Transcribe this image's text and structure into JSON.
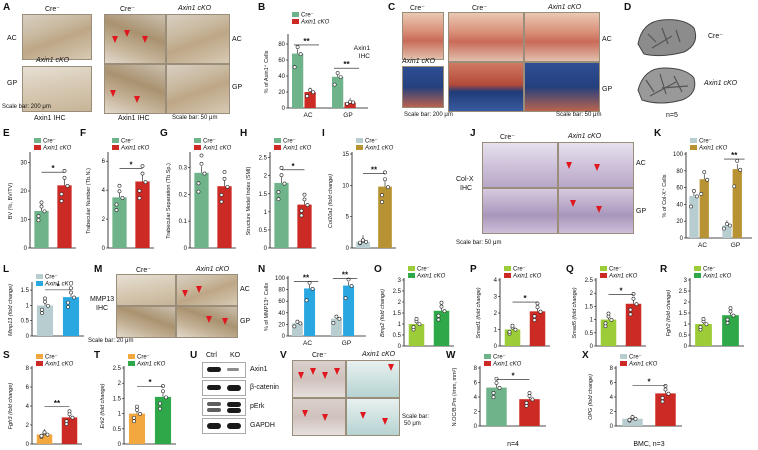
{
  "panel_letters": [
    "A",
    "B",
    "C",
    "D",
    "E",
    "F",
    "G",
    "H",
    "I",
    "J",
    "K",
    "L",
    "M",
    "N",
    "O",
    "P",
    "Q",
    "R",
    "S",
    "T",
    "U",
    "V",
    "W",
    "X"
  ],
  "colors": {
    "ctrl_green": "#6fb38a",
    "cko_red": "#cc2a24",
    "ctrl_gray": "#b7cdd0",
    "cko_gold": "#b89333",
    "cko_blue": "#29a7e1",
    "ctrl_lime": "#9ccc37",
    "cko_dgreen": "#2fa84a",
    "ctrl_orange": "#f2a73f",
    "arrow_red": "#e0171f"
  },
  "common": {
    "cre": "Cre⁻",
    "cko": "Axin1 cKO",
    "scale200": "Scale bar: 200 μm",
    "scale50": "Scale bar: 50 μm",
    "scale20": "Scale bar: 20 μm",
    "ac": "AC",
    "gp": "GP",
    "n5": "n=5",
    "n4": "n=4",
    "bmc": "BMC, n=3"
  },
  "panelA": {
    "cre": "Cre⁻",
    "cko_inset": "Axin1 cKO",
    "cko": "Axin1 cKO",
    "ihc": "Axin1 IHC",
    "scale_left": "Scale bar: 200 μm",
    "scale_right": "Scale bar: 50 μm"
  },
  "panelU": {
    "ctrl": "Ctrl",
    "ko": "KO",
    "rows": [
      "Axin1",
      "β-catenin",
      "pErk",
      "GAPDH"
    ]
  },
  "panelJ": {
    "lbl1": "Col-X",
    "lbl2": "IHC"
  },
  "panelM": {
    "lbl1": "MMP13",
    "lbl2": "IHC"
  },
  "chart_data": [
    {
      "panel": "B",
      "type": "bar",
      "ylabel": "% of Axin1⁺ Cells",
      "yticks": [
        0,
        20,
        40,
        60,
        80
      ],
      "ylim": [
        0,
        90
      ],
      "categories": [
        "AC",
        "GP"
      ],
      "series": [
        {
          "name": "Cre⁻",
          "color": "#6fb38a",
          "values": [
            68,
            39
          ]
        },
        {
          "name": "Axin1 cKO",
          "color": "#cc2a24",
          "values": [
            20,
            7
          ]
        }
      ],
      "annotations": [
        "**",
        "**"
      ],
      "side_label": "Axin1 IHC"
    },
    {
      "panel": "E",
      "type": "bar",
      "ylabel": "BV (%, BV/TV)",
      "yticks": [
        0,
        10,
        20,
        30
      ],
      "ylim": [
        0,
        33
      ],
      "categories": [
        "Cre⁻",
        "Axin1 cKO"
      ],
      "values": [
        13,
        22
      ],
      "colors": [
        "#6fb38a",
        "#cc2a24"
      ],
      "annotations": [
        "*"
      ]
    },
    {
      "panel": "F",
      "type": "bar",
      "ylabel": "Trabecular Number (Tb.N.)",
      "yticks": [
        0,
        2,
        4,
        6
      ],
      "ylim": [
        0,
        6.5
      ],
      "categories": [
        "Cre⁻",
        "Axin1 cKO"
      ],
      "values": [
        3.5,
        4.6
      ],
      "colors": [
        "#6fb38a",
        "#cc2a24"
      ],
      "annotations": [
        "*"
      ]
    },
    {
      "panel": "G",
      "type": "bar",
      "ylabel": "Trabecular Separation (Tb.Sp.)",
      "yticks": [
        0,
        0.1,
        0.2,
        0.3
      ],
      "ylim": [
        0,
        0.35
      ],
      "categories": [
        "Cre⁻",
        "Axin1 cKO"
      ],
      "values": [
        0.28,
        0.23
      ],
      "colors": [
        "#6fb38a",
        "#cc2a24"
      ],
      "annotations": [
        ""
      ]
    },
    {
      "panel": "H",
      "type": "bar",
      "ylabel": "Structure Model Index (SMI)",
      "yticks": [
        0,
        0.5,
        1,
        1.5,
        2,
        2.5
      ],
      "ylim": [
        0,
        2.6
      ],
      "categories": [
        "Cre⁻",
        "Axin1 cKO"
      ],
      "values": [
        1.8,
        1.2
      ],
      "colors": [
        "#6fb38a",
        "#cc2a24"
      ],
      "annotations": [
        "*"
      ]
    },
    {
      "panel": "I",
      "type": "bar",
      "ylabel": "Col10a1 (fold change)",
      "yticks": [
        0,
        5,
        10,
        15
      ],
      "ylim": [
        0,
        15
      ],
      "categories": [
        "Cre⁻",
        "Axin1 cKO"
      ],
      "values": [
        1,
        9.8
      ],
      "colors": [
        "#b7cdd0",
        "#b89333"
      ],
      "annotations": [
        "**"
      ]
    },
    {
      "panel": "K",
      "type": "bar",
      "ylabel": "% of Col-X⁺ Cells",
      "yticks": [
        0,
        20,
        40,
        60,
        80,
        100
      ],
      "ylim": [
        0,
        100
      ],
      "categories": [
        "AC",
        "GP"
      ],
      "series": [
        {
          "name": "Cre⁻",
          "color": "#b7cdd0",
          "values": [
            50,
            15
          ]
        },
        {
          "name": "Axin1 cKO",
          "color": "#b89333",
          "values": [
            70,
            82
          ]
        }
      ],
      "annotations": [
        "",
        "**"
      ]
    },
    {
      "panel": "L",
      "type": "bar",
      "ylabel": "Mmp13 (fold change)",
      "yticks": [
        0,
        0.5,
        1,
        1.5
      ],
      "ylim": [
        0,
        1.7
      ],
      "categories": [
        "Cre⁻",
        "Axin1 cKO"
      ],
      "values": [
        1.0,
        1.27
      ],
      "colors": [
        "#b7cdd0",
        "#29a7e1"
      ],
      "annotations": [
        "*"
      ]
    },
    {
      "panel": "N",
      "type": "bar",
      "ylabel": "% of MMP13⁺ Cells",
      "yticks": [
        0,
        20,
        40,
        60,
        80,
        100
      ],
      "ylim": [
        0,
        100
      ],
      "categories": [
        "AC",
        "GP"
      ],
      "series": [
        {
          "name": "Cre⁻",
          "color": "#b7cdd0",
          "values": [
            22,
            30
          ]
        },
        {
          "name": "Axin1 cKO",
          "color": "#29a7e1",
          "values": [
            82,
            87
          ]
        }
      ],
      "annotations": [
        "**",
        "**"
      ]
    },
    {
      "panel": "O",
      "type": "bar",
      "ylabel": "Bmp2 (fold change)",
      "yticks": [
        0,
        0.5,
        1,
        1.5,
        2,
        2.5,
        3
      ],
      "ylim": [
        0,
        3
      ],
      "categories": [
        "Cre⁻",
        "Axin1 cKO"
      ],
      "values": [
        1.0,
        1.6
      ],
      "colors": [
        "#9ccc37",
        "#2fa84a"
      ],
      "annotations": [
        ""
      ]
    },
    {
      "panel": "P",
      "type": "bar",
      "ylabel": "Smad1 (fold change)",
      "yticks": [
        0,
        1,
        2,
        3,
        4
      ],
      "ylim": [
        0,
        4
      ],
      "categories": [
        "Cre⁻",
        "Axin1 cKO"
      ],
      "values": [
        1.0,
        2.1
      ],
      "colors": [
        "#9ccc37",
        "#cc2a24"
      ],
      "annotations": [
        "*"
      ]
    },
    {
      "panel": "Q",
      "type": "bar",
      "ylabel": "Smad5 (fold change)",
      "yticks": [
        0,
        0.5,
        1,
        1.5,
        2,
        2.5
      ],
      "ylim": [
        0,
        2.5
      ],
      "categories": [
        "Cre⁻",
        "Axin1 cKO"
      ],
      "values": [
        1.0,
        1.6
      ],
      "colors": [
        "#9ccc37",
        "#cc2a24"
      ],
      "annotations": [
        "*"
      ]
    },
    {
      "panel": "R",
      "type": "bar",
      "ylabel": "Fgfr2 (fold change)",
      "yticks": [
        0,
        0.5,
        1,
        1.5,
        2,
        2.5,
        3
      ],
      "ylim": [
        0,
        3
      ],
      "categories": [
        "Cre⁻",
        "Axin1 cKO"
      ],
      "values": [
        1.0,
        1.4
      ],
      "colors": [
        "#9ccc37",
        "#2fa84a"
      ],
      "annotations": [
        ""
      ]
    },
    {
      "panel": "S",
      "type": "bar",
      "ylabel": "Fgfr3 (fold change)",
      "yticks": [
        0,
        2,
        4,
        6,
        8
      ],
      "ylim": [
        0,
        8
      ],
      "categories": [
        "Cre⁻",
        "Axin1 cKO"
      ],
      "values": [
        1.0,
        2.8
      ],
      "colors": [
        "#f2a73f",
        "#cc2a24"
      ],
      "annotations": [
        "**"
      ]
    },
    {
      "panel": "T",
      "type": "bar",
      "ylabel": "Erk2 (fold change)",
      "yticks": [
        0,
        0.5,
        1,
        1.5,
        2,
        2.5
      ],
      "ylim": [
        0,
        2.5
      ],
      "categories": [
        "Cre⁻",
        "Axin1 cKO"
      ],
      "values": [
        1.0,
        1.55
      ],
      "colors": [
        "#f2a73f",
        "#2fa84a"
      ],
      "annotations": [
        "*"
      ]
    },
    {
      "panel": "W",
      "type": "bar",
      "ylabel": "N.OC/B.Pm (/mm, mm²)",
      "yticks": [
        0,
        2,
        4,
        6,
        8
      ],
      "ylim": [
        0,
        8
      ],
      "categories": [
        "Cre⁻",
        "Axin1 cKO"
      ],
      "values": [
        5.3,
        3.7
      ],
      "colors": [
        "#6fb38a",
        "#cc2a24"
      ],
      "annotations": [
        "*"
      ]
    },
    {
      "panel": "X",
      "type": "bar",
      "ylabel": "OPG (fold change)",
      "yticks": [
        0,
        2,
        4,
        6,
        8
      ],
      "ylim": [
        0,
        8
      ],
      "categories": [
        "Cre⁻",
        "Axin1 cKO"
      ],
      "values": [
        1.0,
        4.5
      ],
      "colors": [
        "#b7cdd0",
        "#cc2a24"
      ],
      "annotations": [
        "*"
      ]
    }
  ]
}
